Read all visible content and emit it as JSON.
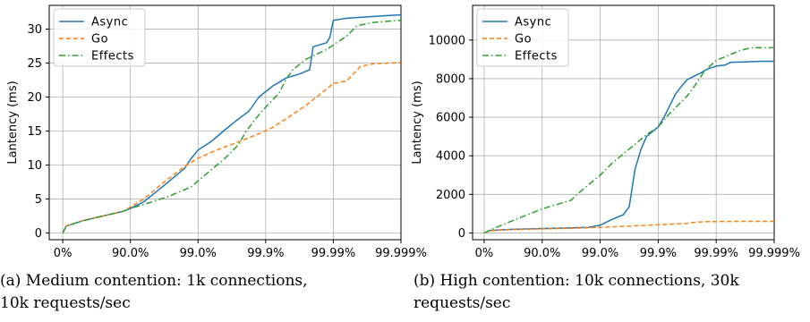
{
  "x_ticks": [
    "0%",
    "90.0%",
    "99.0%",
    "99.9%",
    "99.99%",
    "99.999%"
  ],
  "colors": {
    "Async": "#1f77b4",
    "Go": "#ff7f0e",
    "Effects": "#2ca02c"
  },
  "captions": {
    "a_line1": "(a)  Medium contention:  1k connections,",
    "a_line2": "10k requests/sec",
    "b_line1": "(b) High contention: 10k connections, 30k",
    "b_line2": "requests/sec"
  },
  "chart_data": [
    {
      "type": "line",
      "ylabel": "Lantency (ms)",
      "ylim": [
        -1,
        33.5
      ],
      "y_ticks": [
        0,
        5,
        10,
        15,
        20,
        25,
        30
      ],
      "grid": true,
      "legend": "top-left",
      "series": [
        {
          "name": "Async",
          "style": "solid",
          "points": [
            [
              0,
              0
            ],
            [
              0.05,
              1.0
            ],
            [
              0.3,
              1.8
            ],
            [
              0.6,
              2.5
            ],
            [
              0.9,
              3.2
            ],
            [
              1.0,
              3.6
            ],
            [
              1.2,
              4.6
            ],
            [
              1.5,
              7.0
            ],
            [
              1.8,
              9.5
            ],
            [
              1.9,
              11.0
            ],
            [
              2.0,
              12.2
            ],
            [
              2.2,
              13.5
            ],
            [
              2.4,
              15.2
            ],
            [
              2.6,
              16.8
            ],
            [
              2.75,
              17.9
            ],
            [
              2.9,
              20.0
            ],
            [
              3.1,
              21.6
            ],
            [
              3.3,
              22.8
            ],
            [
              3.5,
              23.4
            ],
            [
              3.65,
              24.0
            ],
            [
              3.7,
              27.4
            ],
            [
              3.9,
              28.0
            ],
            [
              3.95,
              28.8
            ],
            [
              4.0,
              31.3
            ],
            [
              4.2,
              31.6
            ],
            [
              4.5,
              31.8
            ],
            [
              4.8,
              32.0
            ],
            [
              5.0,
              32.1
            ]
          ]
        },
        {
          "name": "Go",
          "style": "dashed",
          "points": [
            [
              0,
              0
            ],
            [
              0.05,
              1.0
            ],
            [
              0.3,
              1.8
            ],
            [
              0.6,
              2.5
            ],
            [
              0.9,
              3.2
            ],
            [
              1.0,
              3.8
            ],
            [
              1.2,
              5.0
            ],
            [
              1.5,
              7.5
            ],
            [
              1.8,
              9.8
            ],
            [
              2.0,
              11.0
            ],
            [
              2.3,
              12.3
            ],
            [
              2.6,
              13.4
            ],
            [
              2.9,
              14.6
            ],
            [
              3.1,
              15.5
            ],
            [
              3.3,
              16.8
            ],
            [
              3.6,
              18.8
            ],
            [
              3.9,
              21.2
            ],
            [
              4.0,
              22.0
            ],
            [
              4.2,
              22.4
            ],
            [
              4.4,
              24.5
            ],
            [
              4.6,
              24.9
            ],
            [
              5.0,
              25.1
            ]
          ]
        },
        {
          "name": "Effects",
          "style": "dashdot",
          "points": [
            [
              0,
              0
            ],
            [
              0.05,
              1.0
            ],
            [
              0.3,
              1.8
            ],
            [
              0.6,
              2.5
            ],
            [
              0.9,
              3.2
            ],
            [
              1.0,
              3.6
            ],
            [
              1.3,
              4.5
            ],
            [
              1.6,
              5.5
            ],
            [
              1.9,
              6.8
            ],
            [
              2.1,
              8.5
            ],
            [
              2.4,
              11.0
            ],
            [
              2.6,
              13.0
            ],
            [
              2.7,
              14.8
            ],
            [
              2.85,
              16.8
            ],
            [
              3.0,
              18.5
            ],
            [
              3.2,
              20.6
            ],
            [
              3.3,
              22.6
            ],
            [
              3.4,
              24.0
            ],
            [
              3.6,
              25.6
            ],
            [
              3.9,
              27.0
            ],
            [
              4.05,
              28.0
            ],
            [
              4.2,
              29.0
            ],
            [
              4.35,
              30.5
            ],
            [
              4.6,
              31.0
            ],
            [
              5.0,
              31.3
            ]
          ]
        }
      ]
    },
    {
      "type": "line",
      "ylabel": "Lantency (ms)",
      "ylim": [
        -350,
        11800
      ],
      "y_ticks": [
        0,
        2000,
        4000,
        6000,
        8000,
        10000
      ],
      "grid": true,
      "legend": "top-left",
      "series": [
        {
          "name": "Async",
          "style": "solid",
          "points": [
            [
              0,
              0
            ],
            [
              0.1,
              130
            ],
            [
              0.5,
              190
            ],
            [
              1.0,
              230
            ],
            [
              1.5,
              260
            ],
            [
              1.8,
              290
            ],
            [
              2.0,
              400
            ],
            [
              2.2,
              700
            ],
            [
              2.4,
              950
            ],
            [
              2.5,
              1350
            ],
            [
              2.6,
              3300
            ],
            [
              2.7,
              4300
            ],
            [
              2.8,
              5000
            ],
            [
              3.0,
              5500
            ],
            [
              3.1,
              6000
            ],
            [
              3.2,
              6600
            ],
            [
              3.3,
              7200
            ],
            [
              3.4,
              7600
            ],
            [
              3.5,
              7950
            ],
            [
              3.7,
              8250
            ],
            [
              3.85,
              8500
            ],
            [
              4.0,
              8650
            ],
            [
              4.15,
              8700
            ],
            [
              4.25,
              8850
            ],
            [
              4.5,
              8870
            ],
            [
              4.8,
              8900
            ],
            [
              5.0,
              8900
            ]
          ]
        },
        {
          "name": "Go",
          "style": "dashed",
          "points": [
            [
              0,
              0
            ],
            [
              0.1,
              120
            ],
            [
              0.5,
              180
            ],
            [
              1.0,
              210
            ],
            [
              1.5,
              240
            ],
            [
              2.0,
              290
            ],
            [
              2.5,
              360
            ],
            [
              3.0,
              430
            ],
            [
              3.5,
              500
            ],
            [
              3.6,
              550
            ],
            [
              3.8,
              580
            ],
            [
              4.0,
              590
            ],
            [
              4.5,
              600
            ],
            [
              5.0,
              600
            ]
          ]
        },
        {
          "name": "Effects",
          "style": "dashdot",
          "points": [
            [
              0,
              0
            ],
            [
              0.1,
              150
            ],
            [
              0.5,
              650
            ],
            [
              1.0,
              1250
            ],
            [
              1.5,
              1700
            ],
            [
              1.6,
              2000
            ],
            [
              1.8,
              2500
            ],
            [
              2.0,
              3000
            ],
            [
              2.2,
              3600
            ],
            [
              2.4,
              4100
            ],
            [
              2.6,
              4600
            ],
            [
              2.8,
              5100
            ],
            [
              3.0,
              5500
            ],
            [
              3.2,
              6200
            ],
            [
              3.4,
              6800
            ],
            [
              3.5,
              7100
            ],
            [
              3.6,
              7500
            ],
            [
              3.8,
              8400
            ],
            [
              4.0,
              8950
            ],
            [
              4.2,
              9200
            ],
            [
              4.4,
              9450
            ],
            [
              4.6,
              9600
            ],
            [
              5.0,
              9600
            ]
          ]
        }
      ]
    }
  ]
}
